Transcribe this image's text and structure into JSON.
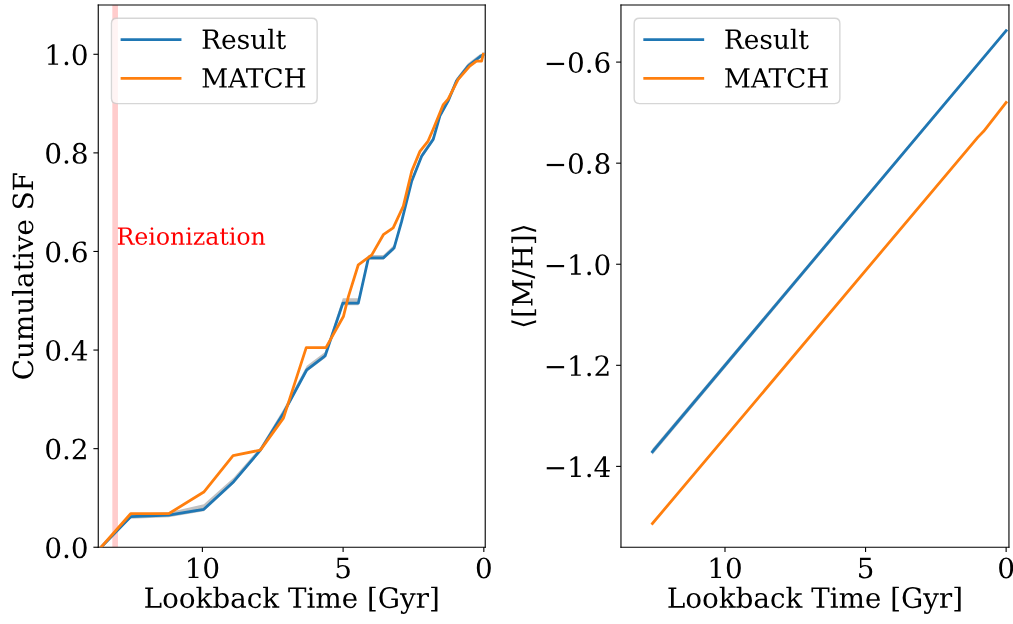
{
  "chart_data": [
    {
      "type": "line",
      "xlabel": "Lookback Time [Gyr]",
      "ylabel": "Cumulative SF",
      "xlim": [
        13.7,
        -0.05
      ],
      "xticks": [
        10,
        5,
        0
      ],
      "ylim": [
        0,
        1.1
      ],
      "yticks": [
        {
          "value": 0,
          "label": "0.0"
        },
        {
          "value": 0.2,
          "label": "0.2"
        },
        {
          "value": 0.4,
          "label": "0.4"
        },
        {
          "value": 0.6,
          "label": "0.6"
        },
        {
          "value": 0.8,
          "label": "0.8"
        },
        {
          "value": 1.0,
          "label": "1.0"
        }
      ],
      "legend": "top left",
      "grid": false,
      "bands": [
        {
          "axis": "x",
          "from": 13.0,
          "to": 13.2,
          "label": "Reionization",
          "color": "#ffcccc"
        }
      ],
      "series": [
        {
          "name": "Result",
          "color": "#1f77b4",
          "x": [
            13.6,
            12.55,
            11.2,
            9.95,
            8.89,
            7.94,
            7.12,
            6.29,
            5.64,
            5.01,
            4.46,
            4.1,
            3.57,
            3.19,
            2.92,
            2.56,
            2.21,
            1.8,
            1.56,
            1.27,
            0.97,
            0.56,
            0.14,
            0.0
          ],
          "values": [
            0.0,
            0.062,
            0.065,
            0.077,
            0.133,
            0.197,
            0.272,
            0.36,
            0.388,
            0.495,
            0.495,
            0.587,
            0.587,
            0.607,
            0.661,
            0.743,
            0.793,
            0.827,
            0.875,
            0.905,
            0.946,
            0.976,
            0.995,
            1.0
          ],
          "lower": [
            0.0,
            0.058,
            0.061,
            0.073,
            0.129,
            0.193,
            0.268,
            0.356,
            0.384,
            0.491,
            0.491,
            0.583,
            0.583,
            0.603,
            0.657,
            0.739,
            0.789,
            0.823,
            0.871,
            0.901,
            0.942,
            0.972,
            0.991,
            0.996
          ],
          "upper": [
            0.0,
            0.068,
            0.071,
            0.087,
            0.141,
            0.203,
            0.28,
            0.368,
            0.396,
            0.505,
            0.505,
            0.593,
            0.593,
            0.613,
            0.667,
            0.749,
            0.799,
            0.833,
            0.881,
            0.911,
            0.952,
            0.982,
            1.0,
            1.0
          ]
        },
        {
          "name": "MATCH",
          "color": "#ff7f0e",
          "x": [
            13.6,
            12.55,
            11.2,
            9.95,
            8.91,
            7.94,
            7.12,
            6.31,
            5.61,
            4.99,
            4.81,
            4.46,
            3.98,
            3.57,
            3.22,
            2.86,
            2.56,
            2.27,
            1.98,
            1.8,
            1.44,
            1.27,
            0.91,
            0.5,
            0.26,
            0.08,
            0.02
          ],
          "values": [
            0.0,
            0.068,
            0.068,
            0.112,
            0.186,
            0.197,
            0.262,
            0.405,
            0.405,
            0.468,
            0.509,
            0.573,
            0.593,
            0.634,
            0.648,
            0.692,
            0.763,
            0.803,
            0.824,
            0.848,
            0.898,
            0.909,
            0.949,
            0.976,
            0.986,
            0.986,
            1.0
          ]
        }
      ]
    },
    {
      "type": "line",
      "xlabel": "Lookback Time [Gyr]",
      "ylabel": "⟨[M/H]⟩",
      "xlim": [
        13.7,
        -0.1
      ],
      "xticks": [
        10,
        5,
        0
      ],
      "ylim": [
        -1.56,
        -0.487
      ],
      "yticks": [
        {
          "value": -1.4,
          "label": "−1.4"
        },
        {
          "value": -1.2,
          "label": "−1.2"
        },
        {
          "value": -1.0,
          "label": "−1.0"
        },
        {
          "value": -0.8,
          "label": "−0.8"
        },
        {
          "value": -0.6,
          "label": "−0.6"
        }
      ],
      "legend": "top left",
      "grid": false,
      "series": [
        {
          "name": "Result",
          "color": "#1f77b4",
          "x": [
            12.58,
            0.0
          ],
          "values": [
            -1.371,
            -0.538
          ],
          "lower": [
            -1.377,
            -0.541
          ],
          "upper": [
            -1.365,
            -0.535
          ]
        },
        {
          "name": "MATCH",
          "color": "#ff7f0e",
          "x": [
            12.58,
            1.01,
            0.8,
            0.0
          ],
          "values": [
            -1.513,
            -0.749,
            -0.737,
            -0.68
          ]
        }
      ]
    }
  ]
}
